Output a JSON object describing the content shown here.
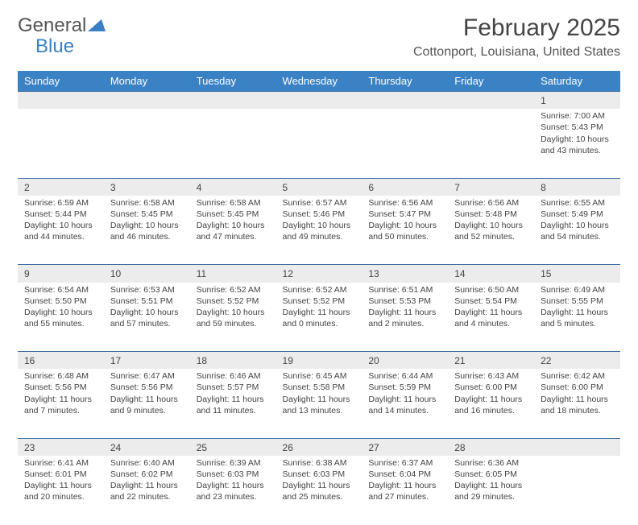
{
  "logo": {
    "word1": "General",
    "word2": "Blue"
  },
  "title": "February 2025",
  "location": "Cottonport, Louisiana, United States",
  "colors": {
    "header_bg": "#3b82c4",
    "header_text": "#ffffff",
    "daynum_bg": "#ececec",
    "row_border": "#3b6fa0",
    "logo_blue": "#3b7fc4",
    "text": "#444444",
    "background": "#ffffff"
  },
  "day_headers": [
    "Sunday",
    "Monday",
    "Tuesday",
    "Wednesday",
    "Thursday",
    "Friday",
    "Saturday"
  ],
  "weeks": [
    [
      {
        "n": "",
        "lines": []
      },
      {
        "n": "",
        "lines": []
      },
      {
        "n": "",
        "lines": []
      },
      {
        "n": "",
        "lines": []
      },
      {
        "n": "",
        "lines": []
      },
      {
        "n": "",
        "lines": []
      },
      {
        "n": "1",
        "lines": [
          "Sunrise: 7:00 AM",
          "Sunset: 5:43 PM",
          "Daylight: 10 hours and 43 minutes."
        ]
      }
    ],
    [
      {
        "n": "2",
        "lines": [
          "Sunrise: 6:59 AM",
          "Sunset: 5:44 PM",
          "Daylight: 10 hours and 44 minutes."
        ]
      },
      {
        "n": "3",
        "lines": [
          "Sunrise: 6:58 AM",
          "Sunset: 5:45 PM",
          "Daylight: 10 hours and 46 minutes."
        ]
      },
      {
        "n": "4",
        "lines": [
          "Sunrise: 6:58 AM",
          "Sunset: 5:45 PM",
          "Daylight: 10 hours and 47 minutes."
        ]
      },
      {
        "n": "5",
        "lines": [
          "Sunrise: 6:57 AM",
          "Sunset: 5:46 PM",
          "Daylight: 10 hours and 49 minutes."
        ]
      },
      {
        "n": "6",
        "lines": [
          "Sunrise: 6:56 AM",
          "Sunset: 5:47 PM",
          "Daylight: 10 hours and 50 minutes."
        ]
      },
      {
        "n": "7",
        "lines": [
          "Sunrise: 6:56 AM",
          "Sunset: 5:48 PM",
          "Daylight: 10 hours and 52 minutes."
        ]
      },
      {
        "n": "8",
        "lines": [
          "Sunrise: 6:55 AM",
          "Sunset: 5:49 PM",
          "Daylight: 10 hours and 54 minutes."
        ]
      }
    ],
    [
      {
        "n": "9",
        "lines": [
          "Sunrise: 6:54 AM",
          "Sunset: 5:50 PM",
          "Daylight: 10 hours and 55 minutes."
        ]
      },
      {
        "n": "10",
        "lines": [
          "Sunrise: 6:53 AM",
          "Sunset: 5:51 PM",
          "Daylight: 10 hours and 57 minutes."
        ]
      },
      {
        "n": "11",
        "lines": [
          "Sunrise: 6:52 AM",
          "Sunset: 5:52 PM",
          "Daylight: 10 hours and 59 minutes."
        ]
      },
      {
        "n": "12",
        "lines": [
          "Sunrise: 6:52 AM",
          "Sunset: 5:52 PM",
          "Daylight: 11 hours and 0 minutes."
        ]
      },
      {
        "n": "13",
        "lines": [
          "Sunrise: 6:51 AM",
          "Sunset: 5:53 PM",
          "Daylight: 11 hours and 2 minutes."
        ]
      },
      {
        "n": "14",
        "lines": [
          "Sunrise: 6:50 AM",
          "Sunset: 5:54 PM",
          "Daylight: 11 hours and 4 minutes."
        ]
      },
      {
        "n": "15",
        "lines": [
          "Sunrise: 6:49 AM",
          "Sunset: 5:55 PM",
          "Daylight: 11 hours and 5 minutes."
        ]
      }
    ],
    [
      {
        "n": "16",
        "lines": [
          "Sunrise: 6:48 AM",
          "Sunset: 5:56 PM",
          "Daylight: 11 hours and 7 minutes."
        ]
      },
      {
        "n": "17",
        "lines": [
          "Sunrise: 6:47 AM",
          "Sunset: 5:56 PM",
          "Daylight: 11 hours and 9 minutes."
        ]
      },
      {
        "n": "18",
        "lines": [
          "Sunrise: 6:46 AM",
          "Sunset: 5:57 PM",
          "Daylight: 11 hours and 11 minutes."
        ]
      },
      {
        "n": "19",
        "lines": [
          "Sunrise: 6:45 AM",
          "Sunset: 5:58 PM",
          "Daylight: 11 hours and 13 minutes."
        ]
      },
      {
        "n": "20",
        "lines": [
          "Sunrise: 6:44 AM",
          "Sunset: 5:59 PM",
          "Daylight: 11 hours and 14 minutes."
        ]
      },
      {
        "n": "21",
        "lines": [
          "Sunrise: 6:43 AM",
          "Sunset: 6:00 PM",
          "Daylight: 11 hours and 16 minutes."
        ]
      },
      {
        "n": "22",
        "lines": [
          "Sunrise: 6:42 AM",
          "Sunset: 6:00 PM",
          "Daylight: 11 hours and 18 minutes."
        ]
      }
    ],
    [
      {
        "n": "23",
        "lines": [
          "Sunrise: 6:41 AM",
          "Sunset: 6:01 PM",
          "Daylight: 11 hours and 20 minutes."
        ]
      },
      {
        "n": "24",
        "lines": [
          "Sunrise: 6:40 AM",
          "Sunset: 6:02 PM",
          "Daylight: 11 hours and 22 minutes."
        ]
      },
      {
        "n": "25",
        "lines": [
          "Sunrise: 6:39 AM",
          "Sunset: 6:03 PM",
          "Daylight: 11 hours and 23 minutes."
        ]
      },
      {
        "n": "26",
        "lines": [
          "Sunrise: 6:38 AM",
          "Sunset: 6:03 PM",
          "Daylight: 11 hours and 25 minutes."
        ]
      },
      {
        "n": "27",
        "lines": [
          "Sunrise: 6:37 AM",
          "Sunset: 6:04 PM",
          "Daylight: 11 hours and 27 minutes."
        ]
      },
      {
        "n": "28",
        "lines": [
          "Sunrise: 6:36 AM",
          "Sunset: 6:05 PM",
          "Daylight: 11 hours and 29 minutes."
        ]
      },
      {
        "n": "",
        "lines": []
      }
    ]
  ]
}
